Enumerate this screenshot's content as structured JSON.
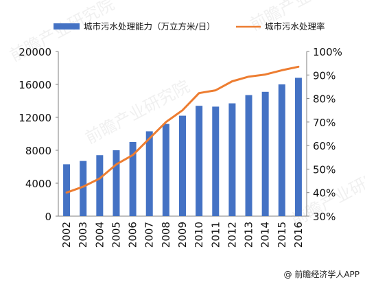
{
  "chart_data": {
    "type": "bar",
    "categories": [
      "2002",
      "2003",
      "2004",
      "2005",
      "2006",
      "2007",
      "2008",
      "2009",
      "2010",
      "2011",
      "2012",
      "2013",
      "2014",
      "2015",
      "2016"
    ],
    "series": [
      {
        "name": "城市污水处理能力（万立方米/日）",
        "type": "bar",
        "axis": "left",
        "color": "#4472C4",
        "values": [
          6300,
          6700,
          7400,
          8000,
          9000,
          10300,
          11200,
          12200,
          13400,
          13300,
          13700,
          14700,
          15100,
          16000,
          16800
        ]
      },
      {
        "name": "城市污水处理率",
        "type": "line",
        "axis": "right",
        "color": "#ED7D31",
        "values": [
          40,
          42.5,
          46,
          52,
          56,
          63,
          70,
          75,
          82.3,
          83.5,
          87.3,
          89.3,
          90.2,
          92,
          93.5
        ]
      }
    ],
    "y_left": {
      "min": 0,
      "max": 20000,
      "ticks": [
        "0",
        "4000",
        "8000",
        "12000",
        "16000",
        "20000"
      ]
    },
    "y_right": {
      "min": 30,
      "max": 100,
      "ticks": [
        "30%",
        "40%",
        "50%",
        "60%",
        "70%",
        "80%",
        "90%",
        "100%"
      ]
    },
    "legend_position": "top",
    "grid": false
  },
  "source": "@ 前瞻经济学人APP",
  "watermark": "前瞻产业研究院"
}
